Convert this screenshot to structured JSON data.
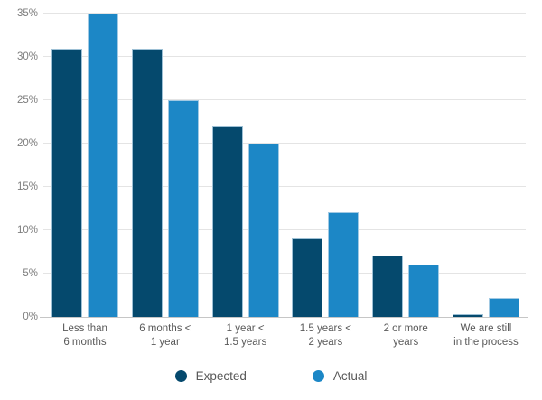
{
  "chart_data": {
    "type": "bar",
    "title": "",
    "xlabel": "",
    "ylabel": "",
    "categories": [
      "Less than\n6 months",
      "6 months <\n1 year",
      "1 year <\n1.5 years",
      "1.5 years <\n2 years",
      "2 or more\nyears",
      "We are still\nin the process"
    ],
    "series": [
      {
        "name": "Expected",
        "color": "#05496d",
        "values": [
          31,
          31,
          22,
          9.1,
          7.1,
          0.3
        ]
      },
      {
        "name": "Actual",
        "color": "#1c87c6",
        "values": [
          35,
          25,
          20,
          12.1,
          6.1,
          2.2
        ]
      }
    ],
    "yticks": [
      0,
      5,
      10,
      15,
      20,
      25,
      30,
      35
    ],
    "ytick_suffix": "%",
    "ylim": [
      0,
      36.6
    ],
    "grid": true,
    "legend_position": "bottom"
  },
  "colors": {
    "background": "#ffffff",
    "expected": "#05496d",
    "actual": "#1c87c6",
    "gridline": "#e4e4e4",
    "axis_line": "#c6c6c6",
    "tick_text": "#7d7d7d",
    "label_text": "#595959",
    "bar_border": "#b9d5e7"
  }
}
